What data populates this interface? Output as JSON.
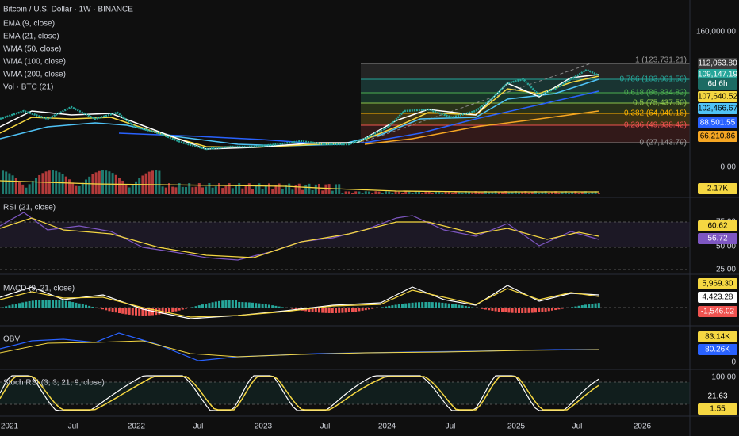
{
  "header": {
    "title": "Bitcoin / U.S. Dollar · 1W · BINANCE",
    "indicators": [
      "EMA (9, close)",
      "EMA (21, close)",
      "WMA (50, close)",
      "WMA (100, close)",
      "WMA (200, close)",
      "Vol · BTC (21)"
    ]
  },
  "main_pane": {
    "axis_labels": [
      "160,000.00",
      "0.00"
    ],
    "price_tags": [
      "112,063.80",
      "109,147.19",
      "6d 6h",
      "107,640.52",
      "102,466.67",
      "88,501.55",
      "66,210.86",
      "2.17K"
    ],
    "fib_levels": [
      "1 (123,731.21)",
      "0.786 (103,061.50)",
      "0.618 (86,834.82)",
      "0.5 (75,437.50)",
      "0.382 (64,040.18)",
      "0.236 (49,938.42)",
      "0 (27,143.79)"
    ]
  },
  "rsi_pane": {
    "title": "RSI (21, close)",
    "axis_labels": [
      "75.00",
      "50.00",
      "25.00"
    ],
    "tags": [
      "60.62",
      "56.72"
    ]
  },
  "macd_pane": {
    "title": "MACD (9, 21, close)",
    "tags": [
      "5,969.30",
      "4,423.28",
      "-1,546.02"
    ]
  },
  "obv_pane": {
    "title": "OBV",
    "tags": [
      "83.14K",
      "80.26K"
    ],
    "axis_labels": [
      "0"
    ]
  },
  "stoch_pane": {
    "title": "Stoch RSI (3, 3, 21, 9, close)",
    "axis_labels": [
      "100.00"
    ],
    "tags": [
      "21.63",
      "1.55"
    ]
  },
  "time_axis": {
    "labels": [
      "2021",
      "Jul",
      "2022",
      "Jul",
      "2023",
      "Jul",
      "2024",
      "Jul",
      "2025",
      "Jul",
      "2026"
    ]
  }
}
